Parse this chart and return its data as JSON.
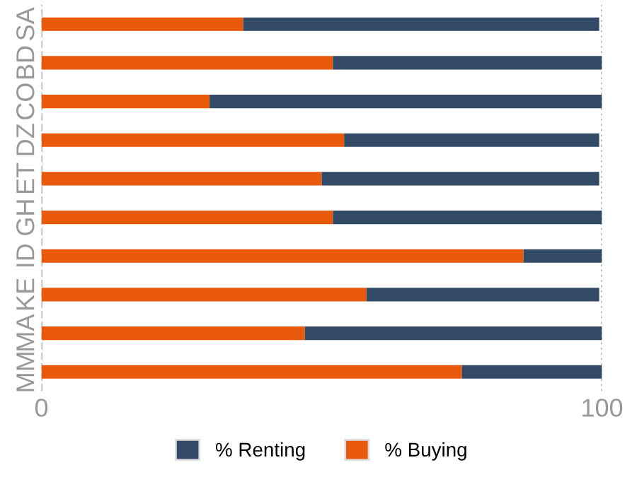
{
  "chart_data": {
    "type": "bar",
    "orientation": "horizontal",
    "stacked": true,
    "categories": [
      "SA",
      "BD",
      "CO",
      "DZ",
      "ET",
      "GH",
      "ID",
      "KE",
      "MA",
      "MM"
    ],
    "series": [
      {
        "name": "% Buying",
        "color": "#e8590c",
        "values": [
          36,
          52,
          30,
          54,
          50,
          52,
          86,
          58,
          47,
          75
        ]
      },
      {
        "name": "% Renting",
        "color": "#324a66",
        "values": [
          63.5,
          48,
          70,
          45.5,
          49.5,
          48,
          14,
          41.5,
          53,
          25
        ]
      }
    ],
    "xlim": [
      0,
      100
    ],
    "xticks": [
      0,
      100
    ],
    "grid": "x",
    "legend": "bottom"
  }
}
